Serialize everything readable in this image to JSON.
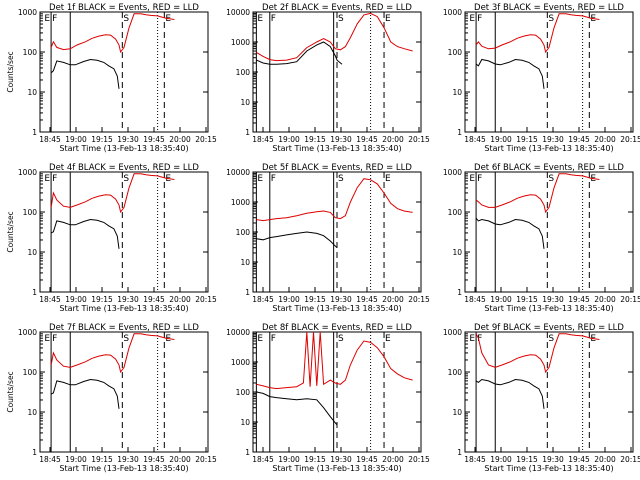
{
  "chart_data": [
    {
      "type": "line",
      "title": "Det 1f BLACK = Events, RED = LLD",
      "ylabel": "Counts/sec",
      "xlabel": "Start Time (13-Feb-13 18:35:40)",
      "ylim": [
        1,
        1000
      ],
      "yticks": [
        "1",
        "10",
        "100",
        "1000"
      ],
      "xticks": [
        "18:45",
        "19:00",
        "19:15",
        "19:30",
        "19:45",
        "20:00",
        "20:15"
      ],
      "markers": [
        "E",
        "F",
        "S",
        "E"
      ],
      "series": [
        {
          "name": "Events",
          "color": "#000000",
          "x": [
            0.066,
            0.08,
            0.1,
            0.14,
            0.18,
            0.21,
            0.26,
            0.3,
            0.34,
            0.38,
            0.41,
            0.44,
            0.46,
            0.47
          ],
          "y": [
            30,
            34,
            60,
            55,
            48,
            48,
            58,
            65,
            62,
            55,
            45,
            38,
            25,
            12
          ]
        },
        {
          "name": "LLD",
          "color": "#dd0000",
          "x": [
            0.066,
            0.08,
            0.1,
            0.14,
            0.18,
            0.22,
            0.27,
            0.31,
            0.35,
            0.39,
            0.42,
            0.45,
            0.47,
            0.48,
            0.5,
            0.53,
            0.56,
            0.58,
            0.6,
            0.63,
            0.66,
            0.7,
            0.75,
            0.8
          ],
          "y": [
            130,
            180,
            130,
            115,
            120,
            150,
            180,
            220,
            250,
            270,
            265,
            210,
            150,
            100,
            130,
            400,
            900,
            900,
            900,
            850,
            820,
            800,
            700,
            650
          ]
        }
      ]
    },
    {
      "type": "line",
      "title": "Det 2f BLACK = Events, RED = LLD",
      "ylabel": "",
      "xlabel": "Start Time (13-Feb-13 18:35:40)",
      "ylim": [
        1,
        10000
      ],
      "yticks": [
        "1",
        "10",
        "100",
        "1000",
        "10000"
      ],
      "xticks": [
        "18:45",
        "19:00",
        "19:15",
        "19:30",
        "19:45",
        "20:00",
        "20:15"
      ],
      "markers": [
        "E",
        "F",
        "S",
        "E"
      ],
      "series": [
        {
          "name": "Events",
          "color": "#000000",
          "x": [
            0.02,
            0.06,
            0.1,
            0.14,
            0.2,
            0.26,
            0.32,
            0.38,
            0.42,
            0.46,
            0.49,
            0.5,
            0.53
          ],
          "y": [
            250,
            200,
            180,
            180,
            190,
            220,
            500,
            800,
            1000,
            700,
            350,
            250,
            180
          ]
        },
        {
          "name": "LLD",
          "color": "#dd0000",
          "x": [
            0.02,
            0.06,
            0.1,
            0.14,
            0.2,
            0.26,
            0.32,
            0.38,
            0.42,
            0.46,
            0.49,
            0.52,
            0.55,
            0.58,
            0.62,
            0.66,
            0.7,
            0.74,
            0.78,
            0.82,
            0.86,
            0.9,
            0.95
          ],
          "y": [
            450,
            330,
            260,
            240,
            250,
            300,
            650,
            1000,
            1300,
            1000,
            600,
            550,
            700,
            1400,
            4000,
            8000,
            9000,
            7000,
            3000,
            1000,
            700,
            600,
            500
          ]
        }
      ]
    },
    {
      "type": "line",
      "title": "Det 3f BLACK = Events, RED = LLD",
      "ylabel": "",
      "xlabel": "Start Time (13-Feb-13 18:35:40)",
      "ylim": [
        1,
        1000
      ],
      "yticks": [
        "1",
        "10",
        "100",
        "1000"
      ],
      "xticks": [
        "18:45",
        "19:00",
        "19:15",
        "19:30",
        "19:45",
        "20:00",
        "20:15"
      ],
      "markers": [
        "E",
        "F",
        "S",
        "E"
      ],
      "series": [
        {
          "name": "Events",
          "color": "#000000",
          "x": [
            0.066,
            0.08,
            0.1,
            0.14,
            0.18,
            0.21,
            0.26,
            0.3,
            0.34,
            0.38,
            0.41,
            0.44,
            0.46,
            0.47
          ],
          "y": [
            50,
            45,
            65,
            60,
            50,
            48,
            55,
            65,
            62,
            55,
            45,
            38,
            25,
            12
          ]
        },
        {
          "name": "LLD",
          "color": "#dd0000",
          "x": [
            0.066,
            0.08,
            0.1,
            0.14,
            0.18,
            0.22,
            0.27,
            0.31,
            0.35,
            0.39,
            0.42,
            0.45,
            0.47,
            0.48,
            0.5,
            0.53,
            0.56,
            0.6,
            0.63,
            0.66,
            0.7,
            0.75,
            0.8
          ],
          "y": [
            150,
            180,
            140,
            120,
            125,
            150,
            180,
            220,
            250,
            270,
            265,
            210,
            150,
            100,
            130,
            400,
            900,
            900,
            850,
            820,
            800,
            700,
            650
          ]
        }
      ]
    },
    {
      "type": "line",
      "title": "Det 4f BLACK = Events, RED = LLD",
      "ylabel": "Counts/sec",
      "xlabel": "Start Time (13-Feb-13 18:35:40)",
      "ylim": [
        1,
        1000
      ],
      "yticks": [
        "1",
        "10",
        "100",
        "1000"
      ],
      "xticks": [
        "18:45",
        "19:00",
        "19:15",
        "19:30",
        "19:45",
        "20:00",
        "20:15"
      ],
      "markers": [
        "E",
        "F",
        "S",
        "E"
      ],
      "series": [
        {
          "name": "Events",
          "color": "#000000",
          "x": [
            0.066,
            0.08,
            0.1,
            0.14,
            0.18,
            0.21,
            0.26,
            0.3,
            0.34,
            0.38,
            0.41,
            0.44,
            0.46,
            0.47
          ],
          "y": [
            30,
            32,
            60,
            55,
            48,
            48,
            58,
            65,
            62,
            55,
            45,
            38,
            25,
            12
          ]
        },
        {
          "name": "LLD",
          "color": "#dd0000",
          "x": [
            0.066,
            0.08,
            0.1,
            0.14,
            0.18,
            0.22,
            0.27,
            0.31,
            0.35,
            0.39,
            0.42,
            0.45,
            0.47,
            0.48,
            0.5,
            0.53,
            0.56,
            0.6,
            0.63,
            0.66,
            0.7,
            0.75,
            0.8
          ],
          "y": [
            130,
            300,
            200,
            140,
            130,
            150,
            180,
            220,
            250,
            270,
            265,
            210,
            150,
            100,
            130,
            400,
            900,
            900,
            850,
            820,
            800,
            700,
            650
          ]
        }
      ]
    },
    {
      "type": "line",
      "title": "Det 5f BLACK = Events, RED = LLD",
      "ylabel": "",
      "xlabel": "Start Time (13-Feb-13 18:35:40)",
      "ylim": [
        1,
        10000
      ],
      "yticks": [
        "1",
        "10",
        "100",
        "1000",
        "10000"
      ],
      "xticks": [
        "18:45",
        "19:00",
        "19:15",
        "19:30",
        "19:45",
        "20:00",
        "20:15"
      ],
      "markers": [
        "E",
        "F",
        "S",
        "E"
      ],
      "series": [
        {
          "name": "Events",
          "color": "#000000",
          "x": [
            0.02,
            0.06,
            0.1,
            0.14,
            0.2,
            0.26,
            0.32,
            0.38,
            0.42,
            0.46,
            0.5
          ],
          "y": [
            60,
            55,
            65,
            70,
            80,
            90,
            100,
            90,
            75,
            50,
            30
          ]
        },
        {
          "name": "LLD",
          "color": "#dd0000",
          "x": [
            0.02,
            0.06,
            0.1,
            0.14,
            0.2,
            0.26,
            0.32,
            0.38,
            0.42,
            0.46,
            0.49,
            0.52,
            0.55,
            0.58,
            0.62,
            0.66,
            0.7,
            0.74,
            0.78,
            0.82,
            0.86,
            0.9,
            0.95
          ],
          "y": [
            260,
            240,
            260,
            280,
            300,
            350,
            420,
            470,
            500,
            450,
            300,
            280,
            350,
            1000,
            3000,
            6000,
            5500,
            4000,
            2000,
            900,
            600,
            500,
            450
          ]
        }
      ]
    },
    {
      "type": "line",
      "title": "Det 6f BLACK = Events, RED = LLD",
      "ylabel": "",
      "xlabel": "Start Time (13-Feb-13 18:35:40)",
      "ylim": [
        1,
        1000
      ],
      "yticks": [
        "1",
        "10",
        "100",
        "1000"
      ],
      "xticks": [
        "18:45",
        "19:00",
        "19:15",
        "19:30",
        "19:45",
        "20:00",
        "20:15"
      ],
      "markers": [
        "E",
        "F",
        "S",
        "E"
      ],
      "series": [
        {
          "name": "Events",
          "color": "#000000",
          "x": [
            0.066,
            0.08,
            0.1,
            0.14,
            0.18,
            0.21,
            0.26,
            0.3,
            0.34,
            0.38,
            0.41,
            0.44,
            0.46,
            0.47
          ],
          "y": [
            70,
            60,
            65,
            60,
            50,
            48,
            55,
            65,
            62,
            55,
            45,
            38,
            25,
            12
          ]
        },
        {
          "name": "LLD",
          "color": "#dd0000",
          "x": [
            0.066,
            0.08,
            0.1,
            0.14,
            0.18,
            0.22,
            0.27,
            0.31,
            0.35,
            0.39,
            0.42,
            0.45,
            0.47,
            0.48,
            0.5,
            0.53,
            0.56,
            0.6,
            0.63,
            0.66,
            0.7,
            0.75,
            0.8
          ],
          "y": [
            200,
            180,
            150,
            130,
            130,
            150,
            180,
            220,
            250,
            270,
            265,
            210,
            150,
            100,
            130,
            400,
            900,
            900,
            850,
            820,
            800,
            700,
            650
          ]
        }
      ]
    },
    {
      "type": "line",
      "title": "Det 7f BLACK = Events, RED = LLD",
      "ylabel": "Counts/sec",
      "xlabel": "Start Time (13-Feb-13 18:35:40)",
      "ylim": [
        1,
        1000
      ],
      "yticks": [
        "1",
        "10",
        "100",
        "1000"
      ],
      "xticks": [
        "18:45",
        "19:00",
        "19:15",
        "19:30",
        "19:45",
        "20:00",
        "20:15"
      ],
      "markers": [
        "E",
        "F",
        "S",
        "E"
      ],
      "series": [
        {
          "name": "Events",
          "color": "#000000",
          "x": [
            0.066,
            0.08,
            0.1,
            0.14,
            0.18,
            0.21,
            0.26,
            0.3,
            0.34,
            0.38,
            0.41,
            0.44,
            0.46,
            0.47
          ],
          "y": [
            28,
            30,
            60,
            55,
            48,
            48,
            58,
            65,
            62,
            55,
            45,
            38,
            25,
            12
          ]
        },
        {
          "name": "LLD",
          "color": "#dd0000",
          "x": [
            0.066,
            0.08,
            0.1,
            0.14,
            0.18,
            0.22,
            0.27,
            0.31,
            0.35,
            0.39,
            0.42,
            0.45,
            0.47,
            0.48,
            0.5,
            0.53,
            0.56,
            0.6,
            0.63,
            0.66,
            0.7,
            0.75,
            0.8
          ],
          "y": [
            150,
            300,
            200,
            140,
            130,
            150,
            180,
            220,
            250,
            270,
            265,
            210,
            150,
            100,
            130,
            400,
            900,
            900,
            850,
            820,
            800,
            700,
            650
          ]
        }
      ]
    },
    {
      "type": "line",
      "title": "Det 8f BLACK = Events, RED = LLD",
      "ylabel": "",
      "xlabel": "Start Time (13-Feb-13 18:35:40)",
      "ylim": [
        1,
        10000
      ],
      "yticks": [
        "1",
        "10",
        "100",
        "1000",
        "10000"
      ],
      "xticks": [
        "18:45",
        "19:00",
        "19:15",
        "19:30",
        "19:45",
        "20:00",
        "20:15"
      ],
      "markers": [
        "E",
        "F",
        "S",
        "E"
      ],
      "series": [
        {
          "name": "Events",
          "color": "#000000",
          "x": [
            0.02,
            0.06,
            0.1,
            0.14,
            0.2,
            0.26,
            0.32,
            0.38,
            0.42,
            0.46,
            0.5
          ],
          "y": [
            100,
            90,
            70,
            65,
            60,
            55,
            60,
            55,
            30,
            15,
            8
          ]
        },
        {
          "name": "LLD",
          "color": "#dd0000",
          "x": [
            0.02,
            0.06,
            0.1,
            0.14,
            0.2,
            0.26,
            0.3,
            0.32,
            0.34,
            0.36,
            0.38,
            0.4,
            0.42,
            0.46,
            0.49,
            0.52,
            0.55,
            0.58,
            0.62,
            0.66,
            0.7,
            0.74,
            0.78,
            0.82,
            0.86,
            0.9,
            0.95
          ],
          "y": [
            180,
            160,
            140,
            130,
            140,
            150,
            200,
            10000,
            150,
            10000,
            160,
            10000,
            180,
            250,
            200,
            180,
            250,
            800,
            2500,
            5000,
            4500,
            3000,
            1500,
            600,
            400,
            300,
            250
          ]
        }
      ]
    },
    {
      "type": "line",
      "title": "Det 9f BLACK = Events, RED = LLD",
      "ylabel": "",
      "xlabel": "Start Time (13-Feb-13 18:35:40)",
      "ylim": [
        1,
        1000
      ],
      "yticks": [
        "1",
        "10",
        "100",
        "1000"
      ],
      "xticks": [
        "18:45",
        "19:00",
        "19:15",
        "19:30",
        "19:45",
        "20:00",
        "20:15"
      ],
      "markers": [
        "E",
        "F",
        "S",
        "E"
      ],
      "series": [
        {
          "name": "Events",
          "color": "#000000",
          "x": [
            0.066,
            0.08,
            0.1,
            0.14,
            0.18,
            0.21,
            0.26,
            0.3,
            0.34,
            0.38,
            0.41,
            0.44,
            0.46,
            0.47
          ],
          "y": [
            60,
            55,
            65,
            60,
            50,
            48,
            55,
            65,
            62,
            55,
            45,
            38,
            25,
            12
          ]
        },
        {
          "name": "LLD",
          "color": "#dd0000",
          "x": [
            0.066,
            0.08,
            0.1,
            0.14,
            0.18,
            0.22,
            0.27,
            0.31,
            0.35,
            0.39,
            0.42,
            0.45,
            0.47,
            0.48,
            0.5,
            0.53,
            0.56,
            0.6,
            0.63,
            0.66,
            0.7,
            0.75,
            0.8
          ],
          "y": [
            900,
            700,
            300,
            150,
            130,
            150,
            180,
            220,
            250,
            270,
            265,
            210,
            150,
            100,
            130,
            400,
            900,
            900,
            850,
            820,
            800,
            700,
            650
          ]
        }
      ]
    }
  ]
}
